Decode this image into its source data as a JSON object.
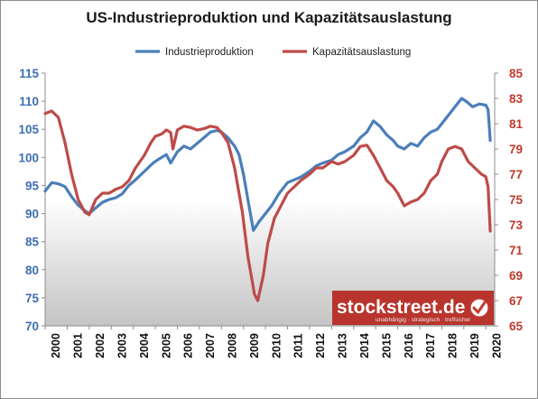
{
  "chart_data": {
    "type": "line",
    "title": "US-Industrieproduktion und Kapazitätsauslastung",
    "legend_position": "top-center",
    "grid": false,
    "x_range": [
      2000.0,
      2020.4
    ],
    "x_ticks": [
      "2000",
      "2001",
      "2002",
      "2003",
      "2004",
      "2005",
      "2006",
      "2007",
      "2008",
      "2009",
      "2010",
      "2011",
      "2012",
      "2013",
      "2014",
      "2015",
      "2016",
      "2017",
      "2018",
      "2019",
      "2020"
    ],
    "y_left": {
      "range": [
        70,
        115
      ],
      "ticks": [
        "70",
        "75",
        "80",
        "85",
        "90",
        "95",
        "100",
        "105",
        "110",
        "115"
      ]
    },
    "y_right": {
      "range": [
        65,
        85
      ],
      "ticks": [
        "65",
        "67",
        "69",
        "71",
        "73",
        "75",
        "77",
        "79",
        "81",
        "83",
        "85"
      ]
    },
    "colors": {
      "industrial": "#4a7ebb",
      "capacity": "#be4b48",
      "left_axis": "#3d6fb0",
      "right_axis": "#c0392b"
    },
    "series": [
      {
        "name": "Industrieproduktion",
        "axis": "left",
        "color": "#4a7ebb",
        "x": [
          2000.0,
          2000.3,
          2000.6,
          2000.9,
          2001.2,
          2001.5,
          2001.8,
          2002.0,
          2002.3,
          2002.6,
          2002.9,
          2003.2,
          2003.5,
          2003.8,
          2004.1,
          2004.5,
          2004.9,
          2005.2,
          2005.5,
          2005.7,
          2006.0,
          2006.3,
          2006.6,
          2006.9,
          2007.2,
          2007.5,
          2007.8,
          2008.0,
          2008.3,
          2008.6,
          2008.8,
          2009.0,
          2009.2,
          2009.45,
          2009.7,
          2010.0,
          2010.3,
          2010.6,
          2011.0,
          2011.3,
          2011.6,
          2012.0,
          2012.3,
          2012.6,
          2013.0,
          2013.3,
          2013.6,
          2014.0,
          2014.3,
          2014.6,
          2014.9,
          2015.2,
          2015.5,
          2015.8,
          2016.0,
          2016.3,
          2016.6,
          2016.9,
          2017.2,
          2017.5,
          2017.8,
          2018.0,
          2018.3,
          2018.6,
          2018.9,
          2019.1,
          2019.4,
          2019.7,
          2020.0,
          2020.1,
          2020.2
        ],
        "values": [
          94.0,
          95.5,
          95.3,
          94.8,
          93.0,
          91.5,
          90.5,
          90.0,
          91.0,
          92.0,
          92.5,
          92.8,
          93.5,
          95.0,
          96.0,
          97.5,
          99.0,
          99.8,
          100.5,
          99.0,
          101.0,
          102.0,
          101.5,
          102.5,
          103.5,
          104.5,
          104.8,
          104.5,
          103.5,
          102.0,
          100.5,
          97.0,
          92.5,
          87.0,
          88.5,
          90.0,
          91.5,
          93.5,
          95.5,
          96.0,
          96.5,
          97.5,
          98.5,
          99.0,
          99.5,
          100.5,
          101.0,
          102.0,
          103.5,
          104.5,
          106.5,
          105.5,
          104.0,
          103.0,
          102.0,
          101.5,
          102.5,
          102.0,
          103.5,
          104.5,
          105.0,
          106.0,
          107.5,
          109.0,
          110.5,
          110.0,
          109.0,
          109.5,
          109.3,
          108.5,
          103.0
        ]
      },
      {
        "name": "Kapazitätsauslastung",
        "axis": "right",
        "color": "#be4b48",
        "x": [
          2000.0,
          2000.3,
          2000.6,
          2000.9,
          2001.2,
          2001.5,
          2001.8,
          2002.0,
          2002.3,
          2002.6,
          2002.9,
          2003.2,
          2003.5,
          2003.8,
          2004.1,
          2004.5,
          2004.8,
          2005.0,
          2005.3,
          2005.5,
          2005.7,
          2005.8,
          2006.0,
          2006.3,
          2006.6,
          2006.9,
          2007.2,
          2007.5,
          2007.8,
          2008.0,
          2008.3,
          2008.6,
          2008.8,
          2008.95,
          2009.2,
          2009.5,
          2009.65,
          2009.9,
          2010.1,
          2010.4,
          2010.7,
          2011.0,
          2011.3,
          2011.6,
          2012.0,
          2012.3,
          2012.6,
          2013.0,
          2013.3,
          2013.6,
          2014.0,
          2014.3,
          2014.6,
          2014.9,
          2015.2,
          2015.5,
          2015.8,
          2016.0,
          2016.3,
          2016.6,
          2016.9,
          2017.2,
          2017.5,
          2017.8,
          2018.0,
          2018.3,
          2018.6,
          2018.9,
          2019.2,
          2019.5,
          2019.8,
          2020.0,
          2020.1,
          2020.2
        ],
        "values": [
          81.8,
          82.0,
          81.5,
          79.5,
          77.0,
          75.0,
          74.0,
          73.8,
          75.0,
          75.5,
          75.5,
          75.8,
          76.0,
          76.5,
          77.5,
          78.5,
          79.5,
          80.0,
          80.2,
          80.5,
          80.3,
          79.0,
          80.5,
          80.8,
          80.7,
          80.5,
          80.6,
          80.8,
          80.7,
          80.3,
          79.5,
          77.5,
          75.5,
          74.0,
          70.5,
          67.5,
          67.0,
          69.0,
          71.5,
          73.5,
          74.5,
          75.5,
          76.0,
          76.5,
          77.0,
          77.5,
          77.5,
          78.0,
          77.8,
          78.0,
          78.5,
          79.2,
          79.3,
          78.5,
          77.5,
          76.5,
          76.0,
          75.5,
          74.5,
          74.8,
          75.0,
          75.5,
          76.5,
          77.0,
          78.0,
          79.0,
          79.2,
          79.0,
          78.0,
          77.5,
          77.0,
          76.8,
          76.0,
          72.5
        ]
      }
    ]
  },
  "watermark": {
    "main": "stockstreet.de",
    "sub": "unabhängig · strategisch · treffsicher"
  }
}
